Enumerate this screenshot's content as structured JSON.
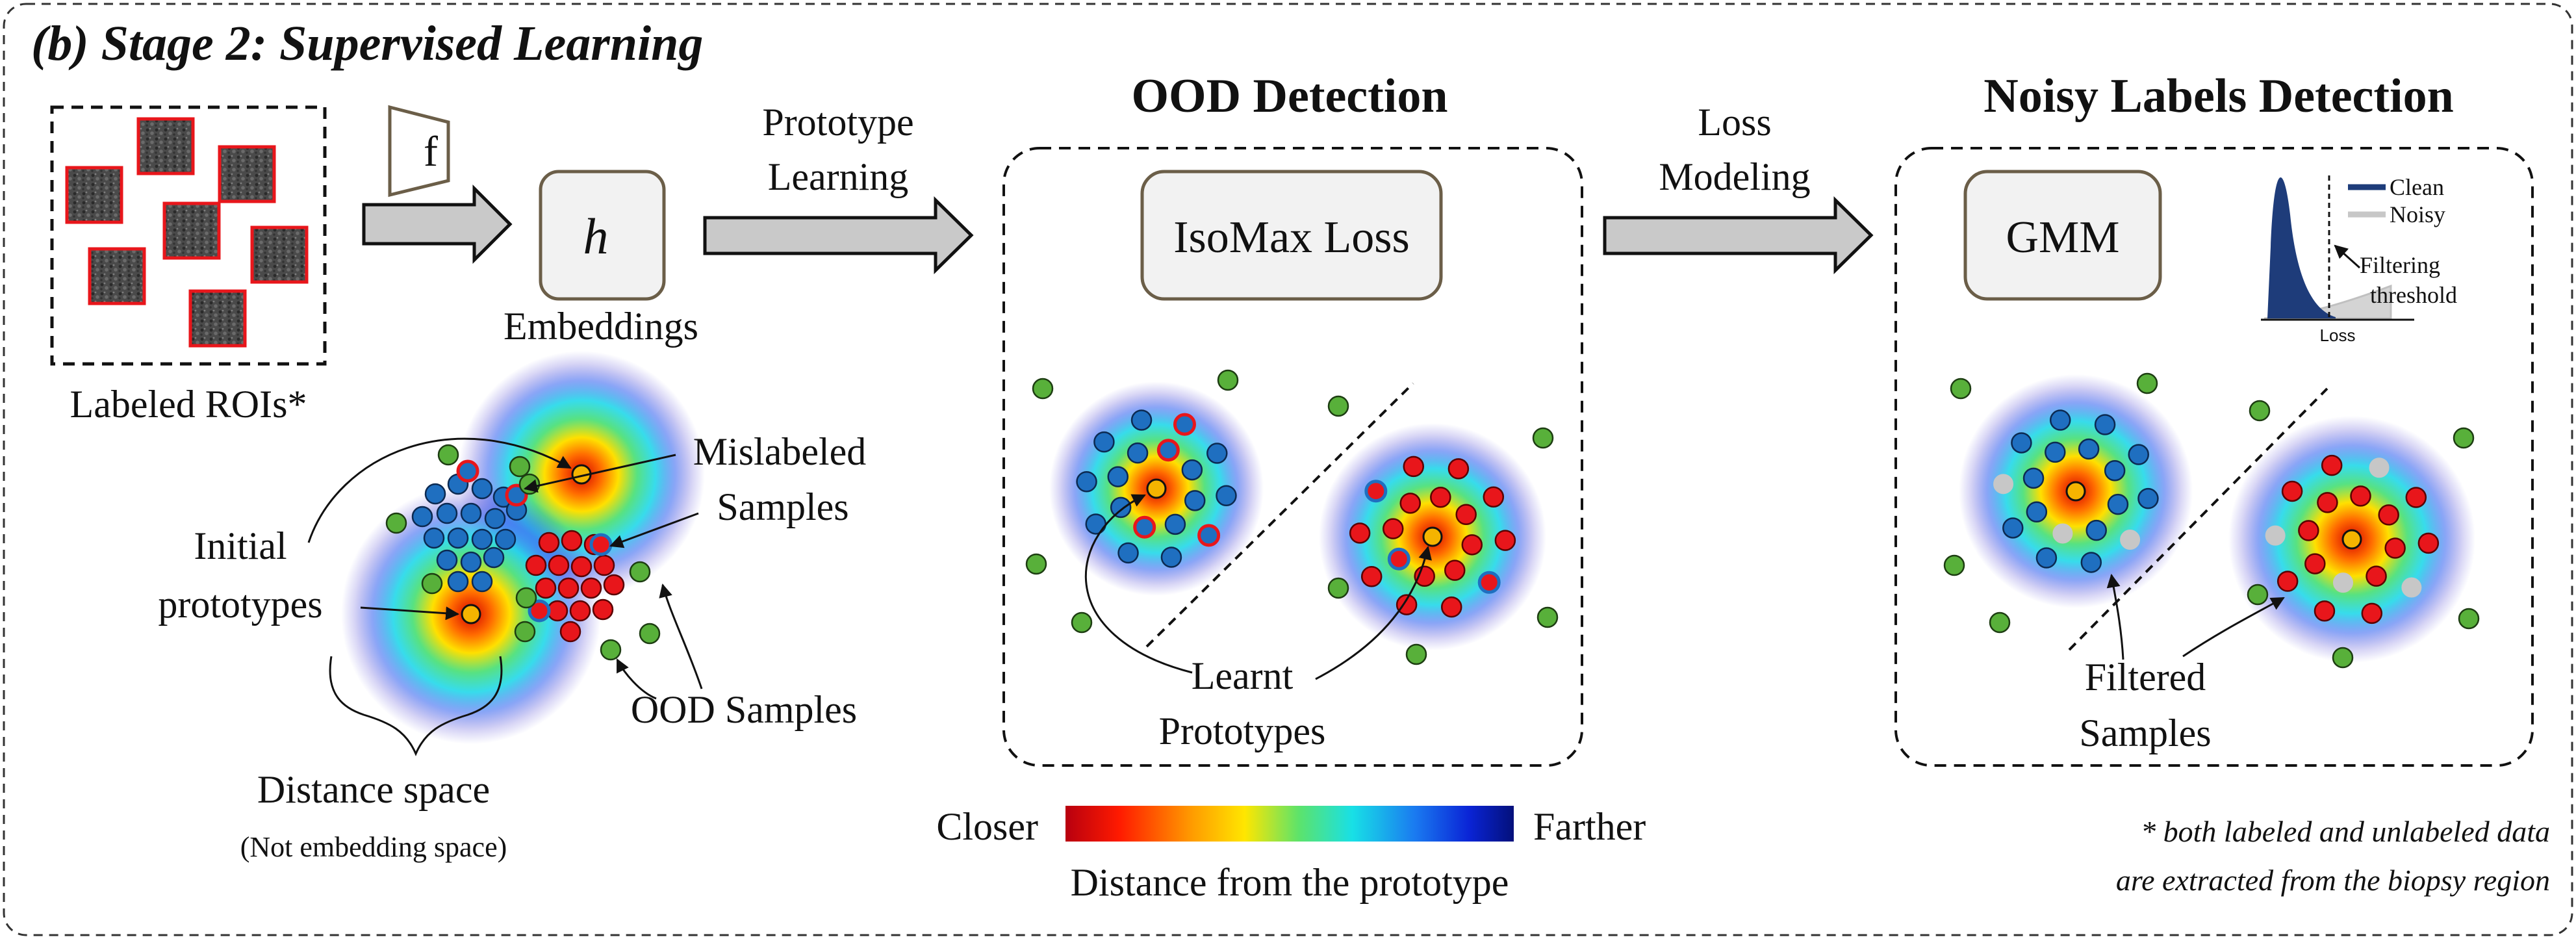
{
  "title": "(b) Stage 2: Supervised Learning",
  "colors": {
    "blue": "#1f6fc0",
    "red": "#e8161b",
    "green": "#58b03a",
    "gray": "#c7c7c7",
    "prototype": "#f5b400",
    "arrow": "#c9c9c9",
    "clean_curve": "#1e3c7a"
  },
  "input": {
    "label": "Labeled ROIs*",
    "encoder_label": "f",
    "head_label": "h",
    "embeddings_label": "Embeddings"
  },
  "distance_space": {
    "initial_prototypes": [
      "Initial",
      "prototypes"
    ],
    "mislabeled": [
      "Mislabeled",
      "Samples"
    ],
    "ood": "OOD Samples",
    "title": "Distance space",
    "subtitle": "(Not embedding space)"
  },
  "arrow1": [
    "Prototype",
    "Learning"
  ],
  "ood_section": {
    "title": "OOD Detection",
    "loss_box": "IsoMax Loss",
    "learnt": [
      "Learnt",
      "Prototypes"
    ]
  },
  "arrow2": [
    "Loss",
    "Modeling"
  ],
  "noisy_section": {
    "title": "Noisy Labels Detection",
    "model_box": "GMM",
    "legend_clean": "Clean",
    "legend_noisy": "Noisy",
    "threshold": [
      "Filtering",
      "threshold"
    ],
    "xaxis": "Loss",
    "filtered": [
      "Filtered",
      "Samples"
    ]
  },
  "colorbar": {
    "left": "Closer",
    "right": "Farther",
    "caption": "Distance from the prototype"
  },
  "footnote": [
    "* both labeled and unlabeled data",
    "are extracted from the biopsy region"
  ]
}
